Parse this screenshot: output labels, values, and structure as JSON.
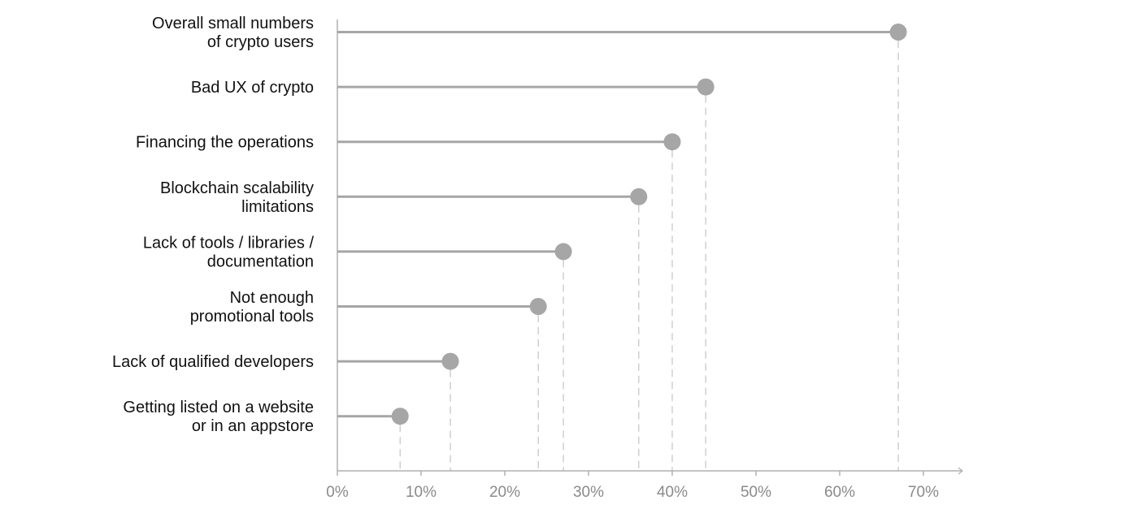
{
  "chart_data": {
    "type": "lollipop",
    "title": "",
    "xlabel": "",
    "ylabel": "",
    "categories": [
      [
        "Overall small numbers",
        "of crypto users"
      ],
      [
        "Bad UX of crypto"
      ],
      [
        "Financing  the operations"
      ],
      [
        "Blockchain scalability",
        "limitations"
      ],
      [
        "Lack of tools / libraries /",
        "documentation"
      ],
      [
        "Not enough",
        "promotional tools"
      ],
      [
        "Lack of qualified developers"
      ],
      [
        "Getting listed on a website",
        "or in an appstore"
      ]
    ],
    "values": [
      67,
      44,
      40,
      36,
      27,
      24,
      13.5,
      7.5
    ],
    "xlim": [
      0,
      75
    ],
    "ticks": [
      0,
      10,
      20,
      30,
      40,
      50,
      60,
      70
    ],
    "tick_labels": [
      "0%",
      "10%",
      "20%",
      "30%",
      "40%",
      "50%",
      "60%",
      "70%"
    ],
    "unit": "%",
    "grid": false,
    "colors": {
      "stem": "#a6a6a6",
      "dot": "#a6a6a6",
      "guide": "#c8c8c8",
      "axis": "#b0b0b0",
      "label": "#111111",
      "tick_label": "#8a8a8a"
    }
  }
}
